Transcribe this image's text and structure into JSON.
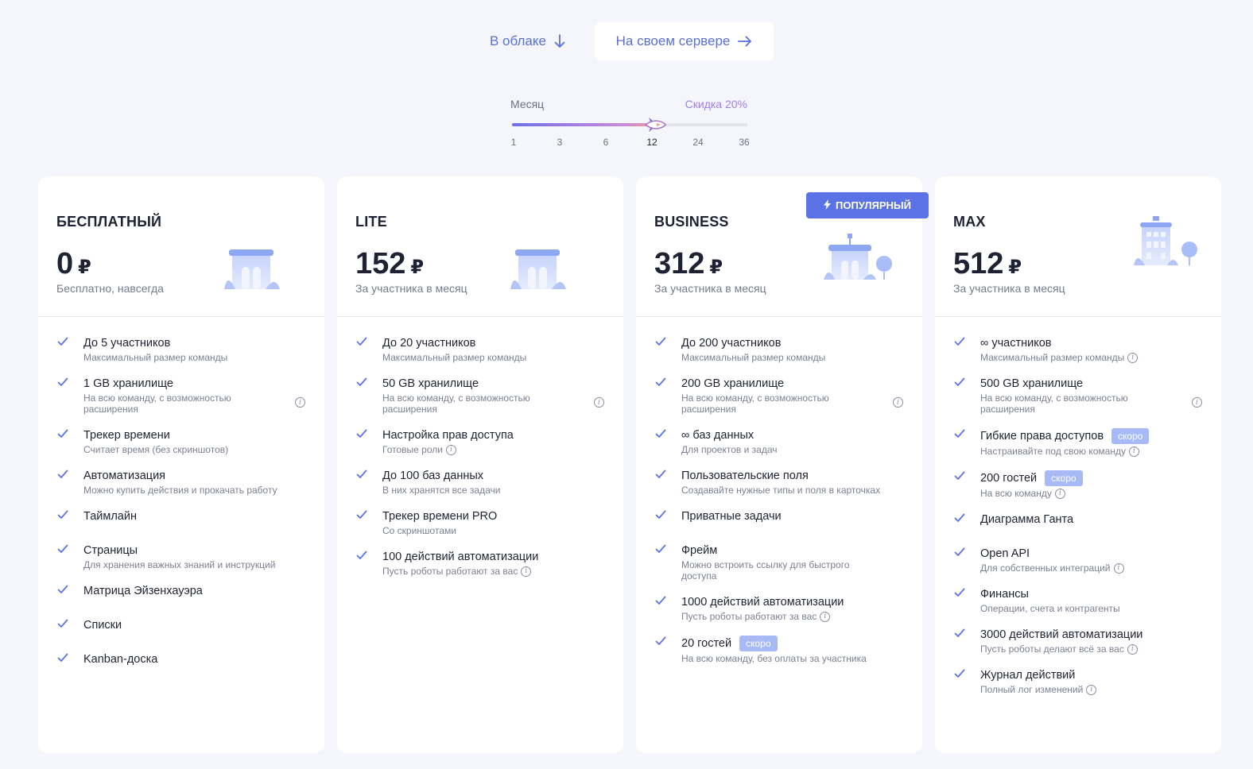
{
  "mode_tabs": {
    "cloud": "В облаке",
    "server": "На своем сервере"
  },
  "period": {
    "label": "Месяц",
    "discount": "Скидка 20%",
    "ticks": [
      "1",
      "3",
      "6",
      "12",
      "24",
      "36"
    ],
    "selected": "12",
    "fill_fraction": 0.6
  },
  "popular_badge": "ПОПУЛЯРНЫЙ",
  "soon_label": "скоро",
  "plans": [
    {
      "name": "БЕСПЛАТНЫЙ",
      "price": "0",
      "currency": "₽",
      "note": "Бесплатно, навсегда",
      "features": [
        {
          "title": "До 5 участников",
          "sub": "Максимальный размер команды"
        },
        {
          "title": "1 GB хранилище",
          "sub": "На всю команду, с возможностью расширения"
        },
        {
          "title": "Трекер времени",
          "sub": "Считает время (без скриншотов)"
        },
        {
          "title": "Автоматизация",
          "sub": "Можно купить действия и прокачать работу"
        },
        {
          "title": "Таймлайн"
        },
        {
          "title": "Страницы",
          "sub": "Для хранения важных знаний и инструкций"
        },
        {
          "title": "Матрица Эйзенхауэра"
        },
        {
          "title": "Списки"
        },
        {
          "title": "Kanban-доска"
        }
      ]
    },
    {
      "name": "LITE",
      "price": "152",
      "currency": "₽",
      "note": "За участника в месяц",
      "features": [
        {
          "title": "До 20 участников",
          "sub": "Максимальный размер команды"
        },
        {
          "title": "50 GB хранилище",
          "sub": "На всю команду, с возможностью расширения"
        },
        {
          "title": "Настройка прав доступа",
          "sub": "Готовые роли"
        },
        {
          "title": "До 100 баз данных",
          "sub": "В них хранятся все задачи"
        },
        {
          "title": "Трекер времени PRO",
          "sub": "Со скриншотами"
        },
        {
          "title": "100 действий автоматизации",
          "sub": "Пусть роботы работают за вас"
        }
      ]
    },
    {
      "name": "BUSINESS",
      "price": "312",
      "currency": "₽",
      "note": "За участника в месяц",
      "features": [
        {
          "title": "До 200 участников",
          "sub": "Максимальный размер команды"
        },
        {
          "title": "200 GB хранилище",
          "sub": "На всю команду, с возможностью расширения"
        },
        {
          "title": "∞ баз данных",
          "sub": "Для проектов и задач"
        },
        {
          "title": "Пользовательские поля",
          "sub": "Создавайте нужные типы и поля в карточках"
        },
        {
          "title": "Приватные задачи"
        },
        {
          "title": "Фрейм",
          "sub": "Можно встроить ссылку для быстрого доступа"
        },
        {
          "title": "1000 действий автоматизации",
          "sub": "Пусть роботы работают за вас"
        },
        {
          "title": "20 гостей",
          "sub": "На всю команду, без оплаты за участника"
        }
      ]
    },
    {
      "name": "MAX",
      "price": "512",
      "currency": "₽",
      "note": "За участника в месяц",
      "features": [
        {
          "title": "∞ участников",
          "sub": "Максимальный размер команды"
        },
        {
          "title": "500 GB хранилище",
          "sub": "На всю команду, с возможностью расширения"
        },
        {
          "title": "Гибкие права доступов",
          "sub": "Настраивайте под свою команду"
        },
        {
          "title": "200 гостей",
          "sub": "На всю команду"
        },
        {
          "title": "Диаграмма Ганта"
        },
        {
          "title": "Open API",
          "sub": "Для собственных интеграций"
        },
        {
          "title": "Финансы",
          "sub": "Операции, счета и контрагенты"
        },
        {
          "title": "3000 действий автоматизации",
          "sub": "Пусть роботы делают всё за вас"
        },
        {
          "title": "Журнал действий",
          "sub": "Полный лог изменений"
        }
      ]
    }
  ],
  "colors": {
    "accent": "#5b72e7",
    "check": "#5b72e7",
    "soon": "#a7baf6",
    "discount": "#a07cf0"
  }
}
